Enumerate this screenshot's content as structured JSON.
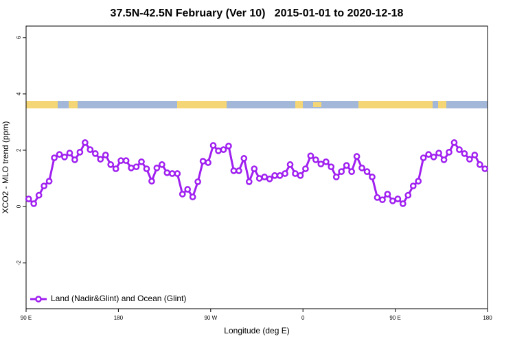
{
  "chart_data": {
    "type": "line",
    "title": "37.5N-42.5N February (Ver 10)   2015-01-01 to 2020-12-18",
    "x_label": "Longitude (deg E)",
    "y_label": "XCO2 - MLO trend (ppm)",
    "x": [
      92.5,
      97.5,
      102.5,
      107.5,
      112.5,
      117.5,
      122.5,
      127.5,
      132.5,
      137.5,
      142.5,
      147.5,
      152.5,
      157.5,
      162.5,
      167.5,
      172.5,
      177.5,
      182.5,
      187.5,
      192.5,
      197.5,
      202.5,
      207.5,
      212.5,
      217.5,
      222.5,
      227.5,
      232.5,
      237.5,
      242.5,
      247.5,
      252.5,
      257.5,
      262.5,
      267.5,
      272.5,
      277.5,
      282.5,
      287.5,
      292.5,
      297.5,
      302.5,
      307.5,
      312.5,
      317.5,
      322.5,
      327.5,
      332.5,
      337.5,
      342.5,
      347.5,
      352.5,
      357.5,
      362.5,
      367.5,
      372.5,
      377.5,
      382.5,
      387.5,
      392.5,
      397.5,
      402.5,
      407.5,
      412.5,
      417.5,
      422.5,
      427.5,
      432.5,
      437.5,
      442.5,
      447.5,
      452.5,
      457.5,
      462.5,
      467.5,
      472.5,
      477.5,
      482.5,
      487.5,
      492.5,
      497.5,
      502.5,
      507.5,
      512.5,
      517.5,
      522.5,
      527.5,
      532.5,
      537.5
    ],
    "series": [
      {
        "name": "Land (Nadir&Glint) and Ocean (Glint)",
        "color": "#a020f0",
        "values": [
          0.27,
          0.1,
          0.4,
          0.73,
          0.9,
          1.73,
          1.85,
          1.76,
          1.9,
          1.66,
          1.93,
          2.27,
          2.02,
          1.88,
          1.68,
          1.83,
          1.49,
          1.34,
          1.63,
          1.63,
          1.37,
          1.41,
          1.59,
          1.34,
          0.9,
          1.37,
          1.49,
          1.2,
          1.17,
          1.17,
          0.44,
          0.61,
          0.34,
          0.88,
          1.61,
          1.56,
          2.17,
          1.98,
          2.02,
          2.15,
          1.27,
          1.27,
          1.71,
          0.88,
          1.34,
          1.0,
          1.05,
          0.98,
          1.1,
          1.1,
          1.17,
          1.49,
          1.17,
          1.1,
          1.34,
          1.8,
          1.66,
          1.51,
          1.59,
          1.41,
          1.05,
          1.24,
          1.46,
          1.24,
          1.78,
          1.37,
          1.24,
          1.05,
          0.32,
          0.24,
          0.44,
          0.2,
          0.27,
          0.1,
          0.4,
          0.73,
          0.9,
          1.73,
          1.85,
          1.76,
          1.9,
          1.66,
          1.93,
          2.27,
          2.02,
          1.88,
          1.68,
          1.83,
          1.49,
          1.34
        ]
      }
    ],
    "xlim": [
      90,
      540
    ],
    "xticks": [
      {
        "value": 90,
        "label": "90 E"
      },
      180,
      {
        "value": 270,
        "label": "90 W"
      },
      {
        "value": 360,
        "label": "0"
      },
      {
        "value": 450,
        "label": "90 E"
      },
      {
        "value": 540,
        "label": "180"
      }
    ],
    "ylim": [
      -3.63,
      6.41
    ],
    "yticks": [
      -2,
      0,
      2,
      4,
      6
    ],
    "legend": "bottom-left"
  }
}
